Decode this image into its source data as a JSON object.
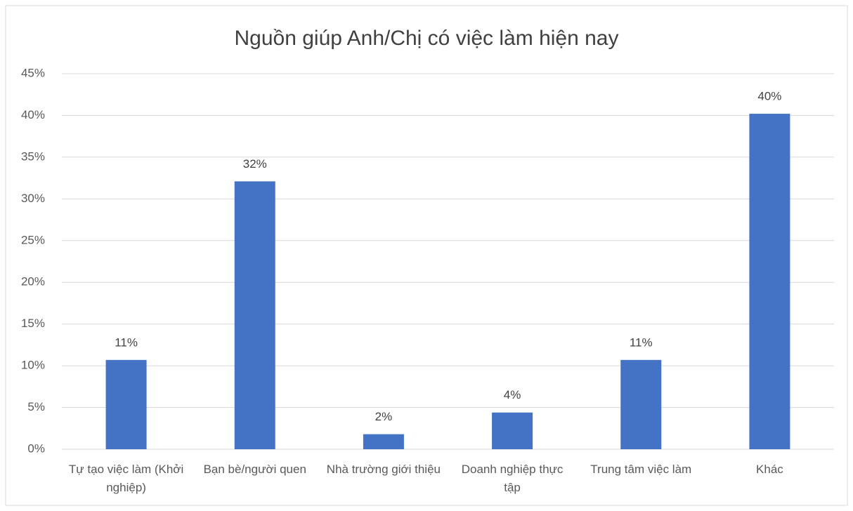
{
  "chart_data": {
    "type": "bar",
    "title": "Nguồn giúp Anh/Chị có việc làm hiện nay",
    "categories": [
      "Tự tạo việc làm (Khởi nghiệp)",
      "Bạn bè/người quen",
      "Nhà trường giới thiệu",
      "Doanh nghiệp thực tập",
      "Trung tâm việc làm",
      "Khác"
    ],
    "values": [
      10.7,
      32.1,
      1.8,
      4.4,
      10.7,
      40.2
    ],
    "value_labels": [
      "11%",
      "32%",
      "2%",
      "4%",
      "11%",
      "40%"
    ],
    "color": "#4472c4",
    "ylim": [
      0,
      45
    ],
    "yticks": [
      {
        "value": 0,
        "label": "0%"
      },
      {
        "value": 5,
        "label": "5%"
      },
      {
        "value": 10,
        "label": "10%"
      },
      {
        "value": 15,
        "label": "15%"
      },
      {
        "value": 20,
        "label": "20%"
      },
      {
        "value": 25,
        "label": "25%"
      },
      {
        "value": 30,
        "label": "30%"
      },
      {
        "value": 35,
        "label": "35%"
      },
      {
        "value": 40,
        "label": "40%"
      },
      {
        "value": 45,
        "label": "45%"
      }
    ],
    "grid": true
  }
}
